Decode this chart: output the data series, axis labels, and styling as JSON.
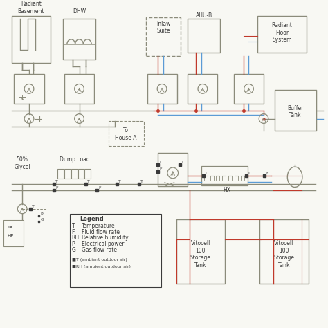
{
  "bg_color": "#f8f8f3",
  "line_color_main": "#8B8B7A",
  "line_color_red": "#C0392B",
  "line_color_blue": "#5B9BD5",
  "labels": {
    "radiant_basement": "Radiant\nBasement",
    "dhw": "DHW",
    "inlaw_suite": "Inlaw\nSuite",
    "ahu_b": "AHU-B",
    "radiant_floor": "Radiant\nFloor\nSystem",
    "buffer_tank": "Buffer\nTank",
    "to_house_a": "To\nHouse A",
    "dump_load": "Dump Load",
    "glycol": "50%\nGlycol",
    "hx": "HX",
    "vitocell1": "Vitocell\n100\nStorage\nTank",
    "vitocell2": "Vitocell\n100\nStorage\nTank",
    "legend_title": "Legend",
    "T_label": "T",
    "T_desc": "Temperature",
    "F_label": "F",
    "F_desc": "Fluid flow rate",
    "RH_label": "RH",
    "RH_desc": "Relative humidity",
    "P_label": "P",
    "P_desc": "Electrical power",
    "G_label": "G",
    "G_desc": "Gas flow rate",
    "dot1": "■  T (ambient outdoor air)",
    "dot2": "■  RH (ambient outdoor air)"
  }
}
